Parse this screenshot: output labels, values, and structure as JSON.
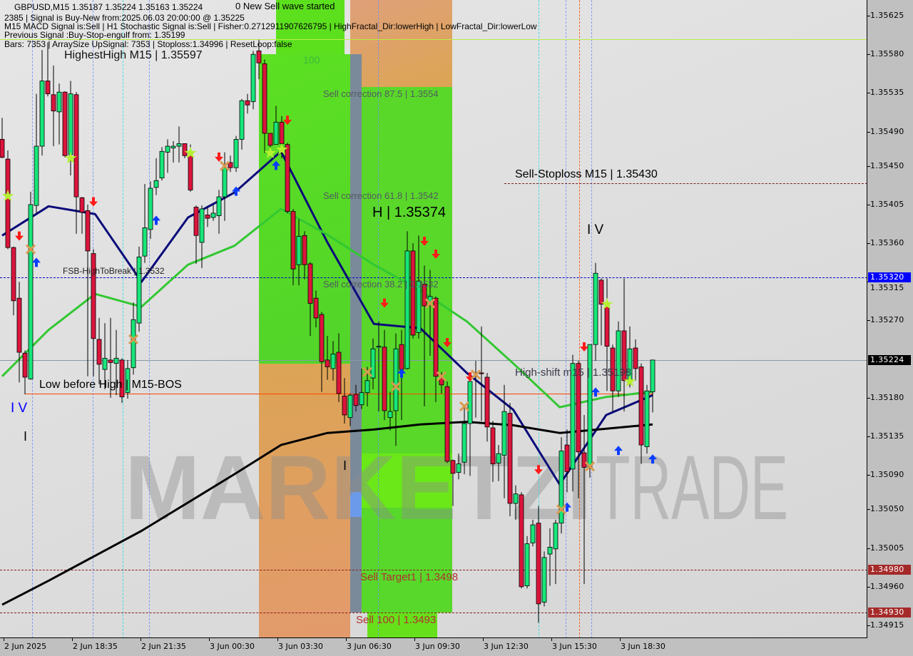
{
  "header": {
    "symbol_line": "GBPUSD,M15  1.35187 1.35224 1.35163 1.35224",
    "new_wave": "0 New Sell wave started",
    "signal_line": "2385 | Signal is Buy-New from:2025.06.03 20:00:00 @ 1.35225",
    "indicators_line": "M15 MACD Signal is:Sell | H1 Stochastic Signal is:Sell | Fisher:0.2712911907626795 | HighFractal_Dir:lowerHigh | LowFractal_Dir:lowerLow",
    "previous_signal": "Previous Signal :Buy-Stop-engulf from: 1.35199",
    "bars_line": "Bars: 7353 | ArraySize UpSignal: 7353 | Stoploss:1.34996 | ResetLoop:false",
    "highest_high": "HighestHigh  M15 | 1.35597"
  },
  "annotations": {
    "level_100": "100",
    "sell_corr_875": "Sell correction 87.5 | 1.3554",
    "sell_corr_618": "Sell correction 61.8 | 1.3542",
    "h_level": "H | 1.35374",
    "sell_corr_382": "Sell correction 38.2 | 1.3532",
    "fsb_high": "FSB-HighToBreak | 1.3532",
    "low_before_high": "Low before High  |  M15-BOS",
    "wave_iv_left": "I V",
    "wave_i_left": "I",
    "wave_i_mid": "I",
    "wave_iv_right": "I V",
    "sell_stoploss": "Sell-Stoploss M15 | 1.35430",
    "high_shift": "High-shift m15 | 1.35198",
    "sell_target1": "Sell Target1 | 1.3498",
    "sell_100": "Sell 100 | 1.3493"
  },
  "watermark": {
    "bold": "MARKETZI",
    "light": "TRADE"
  },
  "colors": {
    "bull": "#18e67a",
    "bear": "#dc143c",
    "ma_fast": "#0a0a7a",
    "ma_mid": "#32c832",
    "ma_slow": "#000000",
    "zone_green": "#5cdc22",
    "zone_orange": "#e0a262",
    "sell_arrow": "#ff1a1a",
    "buy_arrow": "#0a3cff",
    "star": "#b4f032",
    "cross": "#d89a50"
  },
  "chart_data": {
    "type": "candlestick",
    "symbol": "GBPUSD",
    "timeframe": "M15",
    "ylim": [
      1.3489,
      1.35644
    ],
    "y_ticks": [
      1.35625,
      1.3558,
      1.35535,
      1.3549,
      1.3545,
      1.35405,
      1.3536,
      1.35315,
      1.3527,
      1.3518,
      1.35135,
      1.3509,
      1.3505,
      1.35005,
      1.3496,
      1.34915
    ],
    "price_markers": [
      {
        "label": "1.35320",
        "price": 1.3532,
        "color": "#0000ff"
      },
      {
        "label": "1.35224",
        "price": 1.35224,
        "color": "#000000"
      },
      {
        "label": "1.34980",
        "price": 1.3498,
        "color": "#a52a2a"
      },
      {
        "label": "1.34930",
        "price": 1.3493,
        "color": "#a52a2a"
      }
    ],
    "x_tick_labels": [
      "2 Jun 2025",
      "2 Jun 18:35",
      "2 Jun 21:35",
      "3 Jun 00:30",
      "3 Jun 03:30",
      "3 Jun 06:30",
      "3 Jun 09:30",
      "3 Jun 12:30",
      "3 Jun 15:30",
      "3 Jun 18:30"
    ],
    "candles_ohlc": [
      [
        1.35481,
        1.35506,
        1.35459,
        1.3546
      ],
      [
        1.35458,
        1.35468,
        1.35353,
        1.35355
      ],
      [
        1.35355,
        1.35356,
        1.35276,
        1.35293
      ],
      [
        1.35296,
        1.35315,
        1.35198,
        1.35233
      ],
      [
        1.35232,
        1.35235,
        1.35184,
        1.35204
      ],
      [
        1.35202,
        1.3542,
        1.35201,
        1.35405
      ],
      [
        1.35404,
        1.35534,
        1.35395,
        1.35473
      ],
      [
        1.35473,
        1.35585,
        1.35462,
        1.35549
      ],
      [
        1.35549,
        1.35594,
        1.35531,
        1.35534
      ],
      [
        1.35533,
        1.35567,
        1.35473,
        1.35514
      ],
      [
        1.35513,
        1.35546,
        1.35475,
        1.35536
      ],
      [
        1.35536,
        1.35537,
        1.3546,
        1.35462
      ],
      [
        1.35463,
        1.35549,
        1.35439,
        1.35534
      ],
      [
        1.35533,
        1.35536,
        1.35371,
        1.35414
      ],
      [
        1.35413,
        1.35414,
        1.35371,
        1.35396
      ],
      [
        1.35398,
        1.35405,
        1.35205,
        1.35351
      ],
      [
        1.35348,
        1.35353,
        1.35205,
        1.35249
      ],
      [
        1.35248,
        1.35273,
        1.35196,
        1.35219
      ],
      [
        1.35213,
        1.35267,
        1.3519,
        1.35226
      ],
      [
        1.35224,
        1.35273,
        1.3518,
        1.35221
      ],
      [
        1.3522,
        1.35259,
        1.35183,
        1.35226
      ],
      [
        1.35224,
        1.35226,
        1.35174,
        1.35181
      ],
      [
        1.35186,
        1.35224,
        1.35179,
        1.35214
      ],
      [
        1.35215,
        1.35291,
        1.35207,
        1.35271
      ],
      [
        1.35267,
        1.35356,
        1.35257,
        1.35344
      ],
      [
        1.35345,
        1.35429,
        1.35337,
        1.35378
      ],
      [
        1.35376,
        1.35432,
        1.35365,
        1.35424
      ],
      [
        1.35425,
        1.35459,
        1.35416,
        1.35433
      ],
      [
        1.35436,
        1.35472,
        1.35433,
        1.35467
      ],
      [
        1.35466,
        1.35481,
        1.35442,
        1.35473
      ],
      [
        1.35471,
        1.35479,
        1.35454,
        1.35473
      ],
      [
        1.35473,
        1.35496,
        1.35454,
        1.35476
      ],
      [
        1.35476,
        1.35476,
        1.35459,
        1.35462
      ],
      [
        1.35462,
        1.35475,
        1.3542,
        1.35422
      ],
      [
        1.35402,
        1.35404,
        1.35336,
        1.35369
      ],
      [
        1.35361,
        1.35404,
        1.35331,
        1.354
      ],
      [
        1.35393,
        1.35402,
        1.35379,
        1.35389
      ],
      [
        1.3539,
        1.35405,
        1.35386,
        1.35395
      ],
      [
        1.35392,
        1.35422,
        1.35371,
        1.35414
      ],
      [
        1.35414,
        1.35466,
        1.35386,
        1.35448
      ],
      [
        1.35454,
        1.35462,
        1.35443,
        1.35448
      ],
      [
        1.35448,
        1.35485,
        1.35443,
        1.35481
      ],
      [
        1.35481,
        1.35528,
        1.35469,
        1.35526
      ],
      [
        1.35526,
        1.35534,
        1.35511,
        1.35521
      ],
      [
        1.35525,
        1.35584,
        1.35516,
        1.3558
      ],
      [
        1.35584,
        1.35597,
        1.35551,
        1.3557
      ],
      [
        1.35569,
        1.35574,
        1.35465,
        1.35488
      ],
      [
        1.35488,
        1.35488,
        1.35465,
        1.35474
      ],
      [
        1.35475,
        1.3552,
        1.35475,
        1.35501
      ],
      [
        1.35501,
        1.35508,
        1.35459,
        1.35476
      ],
      [
        1.35475,
        1.35477,
        1.35395,
        1.35397
      ],
      [
        1.35397,
        1.354,
        1.35311,
        1.3533
      ],
      [
        1.35335,
        1.35388,
        1.35311,
        1.35368
      ],
      [
        1.35369,
        1.35374,
        1.35318,
        1.35335
      ],
      [
        1.35336,
        1.35338,
        1.35252,
        1.3529
      ],
      [
        1.35296,
        1.35305,
        1.35262,
        1.35273
      ],
      [
        1.35277,
        1.3528,
        1.35187,
        1.35222
      ],
      [
        1.35224,
        1.35252,
        1.35201,
        1.35216
      ],
      [
        1.35214,
        1.35246,
        1.352,
        1.35231
      ],
      [
        1.35233,
        1.35255,
        1.35175,
        1.35185
      ],
      [
        1.35182,
        1.35203,
        1.3515,
        1.3516
      ],
      [
        1.35157,
        1.35185,
        1.35147,
        1.35183
      ],
      [
        1.35184,
        1.35195,
        1.35164,
        1.35171
      ],
      [
        1.35172,
        1.35214,
        1.35167,
        1.35186
      ],
      [
        1.35186,
        1.35216,
        1.3517,
        1.352
      ],
      [
        1.35203,
        1.35249,
        1.3519,
        1.35237
      ],
      [
        1.35239,
        1.35269,
        1.35164,
        1.3524
      ],
      [
        1.35239,
        1.35259,
        1.35154,
        1.35165
      ],
      [
        1.35157,
        1.35187,
        1.35142,
        1.35164
      ],
      [
        1.35165,
        1.35255,
        1.35124,
        1.35237
      ],
      [
        1.35242,
        1.35259,
        1.35154,
        1.35213
      ],
      [
        1.35214,
        1.35374,
        1.35213,
        1.35351
      ],
      [
        1.35351,
        1.3536,
        1.35249,
        1.35253
      ],
      [
        1.35256,
        1.35369,
        1.35249,
        1.35316
      ],
      [
        1.35312,
        1.35334,
        1.3517,
        1.35287
      ],
      [
        1.35292,
        1.35329,
        1.35229,
        1.35298
      ],
      [
        1.35296,
        1.35298,
        1.35175,
        1.35205
      ],
      [
        1.35203,
        1.3521,
        1.35185,
        1.35195
      ],
      [
        1.35193,
        1.35199,
        1.35104,
        1.35106
      ],
      [
        1.35107,
        1.35108,
        1.35054,
        1.35092
      ],
      [
        1.35093,
        1.35115,
        1.35085,
        1.35103
      ],
      [
        1.35105,
        1.35171,
        1.35091,
        1.3515
      ],
      [
        1.3515,
        1.35209,
        1.35089,
        1.35199
      ],
      [
        1.35208,
        1.35223,
        1.35157,
        1.35209
      ],
      [
        1.35209,
        1.35263,
        1.35153,
        1.35208
      ],
      [
        1.35204,
        1.35209,
        1.35129,
        1.35146
      ],
      [
        1.35145,
        1.35153,
        1.35082,
        1.35103
      ],
      [
        1.35104,
        1.35125,
        1.35083,
        1.35115
      ],
      [
        1.35113,
        1.35195,
        1.35063,
        1.35164
      ],
      [
        1.35162,
        1.35174,
        1.35042,
        1.35057
      ],
      [
        1.35057,
        1.35078,
        1.35038,
        1.35068
      ],
      [
        1.35067,
        1.3507,
        1.34958,
        1.3496
      ],
      [
        1.34961,
        1.35019,
        1.34958,
        1.3501
      ],
      [
        1.35011,
        1.35038,
        1.35007,
        1.35032
      ],
      [
        1.35034,
        1.35054,
        1.34918,
        1.3494
      ],
      [
        1.34942,
        1.35001,
        1.34937,
        1.34994
      ],
      [
        1.34998,
        1.35028,
        1.34961,
        1.35006
      ],
      [
        1.35004,
        1.35038,
        1.34963,
        1.35034
      ],
      [
        1.35034,
        1.35134,
        1.35022,
        1.35118
      ],
      [
        1.35125,
        1.35143,
        1.3507,
        1.35094
      ],
      [
        1.35097,
        1.3523,
        1.35071,
        1.3522
      ],
      [
        1.3522,
        1.35223,
        1.35063,
        1.35117
      ],
      [
        1.35116,
        1.3516,
        1.34963,
        1.35099
      ],
      [
        1.35099,
        1.35242,
        1.35087,
        1.35242
      ],
      [
        1.35242,
        1.35337,
        1.35223,
        1.35325
      ],
      [
        1.35317,
        1.35319,
        1.35241,
        1.35289
      ],
      [
        1.35289,
        1.35319,
        1.35188,
        1.3524
      ],
      [
        1.35238,
        1.35242,
        1.35164,
        1.35188
      ],
      [
        1.35188,
        1.35269,
        1.35181,
        1.35258
      ],
      [
        1.35258,
        1.35319,
        1.35164,
        1.352
      ],
      [
        1.352,
        1.35263,
        1.35192,
        1.35237
      ],
      [
        1.35238,
        1.35248,
        1.352,
        1.35214
      ],
      [
        1.35216,
        1.3522,
        1.35103,
        1.35125
      ],
      [
        1.35123,
        1.35195,
        1.35115,
        1.35188
      ],
      [
        1.35187,
        1.35224,
        1.35163,
        1.35224
      ]
    ],
    "moving_averages": [
      {
        "color": "#0a0a7a",
        "values": [
          1.35369,
          1.35403,
          1.35394,
          1.35315,
          1.3539,
          1.35419,
          1.35467,
          1.35361,
          1.35266,
          1.35261,
          1.35209,
          1.35166,
          1.35079,
          1.3516,
          1.35183
        ]
      },
      {
        "color": "#32c832",
        "values": [
          1.35205,
          1.35259,
          1.35301,
          1.35286,
          1.35335,
          1.35357,
          1.354,
          1.3537,
          1.35335,
          1.35305,
          1.35269,
          1.3522,
          1.35169,
          1.35181,
          1.35187
        ]
      },
      {
        "color": "#000000",
        "values": [
          1.34939,
          1.34967,
          1.34996,
          1.35025,
          1.35058,
          1.35091,
          1.35125,
          1.35139,
          1.35143,
          1.35149,
          1.35152,
          1.35148,
          1.35139,
          1.35144,
          1.35149
        ]
      }
    ],
    "signals": [
      {
        "type": "sell-arrow",
        "bar": 3,
        "price": 1.35367
      },
      {
        "type": "sell-arrow",
        "bar": 16,
        "price": 1.35407
      },
      {
        "type": "sell-arrow",
        "bar": 38,
        "price": 1.35459
      },
      {
        "type": "sell-arrow",
        "bar": 50,
        "price": 1.35502
      },
      {
        "type": "sell-arrow",
        "bar": 67,
        "price": 1.35289
      },
      {
        "type": "sell-arrow",
        "bar": 74,
        "price": 1.35361
      },
      {
        "type": "sell-arrow",
        "bar": 76,
        "price": 1.35346
      },
      {
        "type": "sell-arrow",
        "bar": 78,
        "price": 1.35243
      },
      {
        "type": "sell-arrow",
        "bar": 82,
        "price": 1.35203
      },
      {
        "type": "sell-arrow",
        "bar": 94,
        "price": 1.35095
      },
      {
        "type": "sell-arrow",
        "bar": 102,
        "price": 1.35238
      },
      {
        "type": "buy-arrow",
        "bar": 6,
        "price": 1.35339
      },
      {
        "type": "buy-arrow",
        "bar": 27,
        "price": 1.35388
      },
      {
        "type": "buy-arrow",
        "bar": 41,
        "price": 1.35422
      },
      {
        "type": "buy-arrow",
        "bar": 48,
        "price": 1.35452
      },
      {
        "type": "buy-arrow",
        "bar": 70,
        "price": 1.3521
      },
      {
        "type": "buy-arrow",
        "bar": 99,
        "price": 1.35054
      },
      {
        "type": "buy-arrow",
        "bar": 104,
        "price": 1.35188
      },
      {
        "type": "buy-arrow",
        "bar": 108,
        "price": 1.3512
      },
      {
        "type": "buy-arrow",
        "bar": 114,
        "price": 1.3511
      },
      {
        "type": "star",
        "bar": 1,
        "price": 1.35415
      },
      {
        "type": "star",
        "bar": 12,
        "price": 1.35459
      },
      {
        "type": "star",
        "bar": 33,
        "price": 1.35465
      },
      {
        "type": "star",
        "bar": 47,
        "price": 1.35465
      },
      {
        "type": "star",
        "bar": 49,
        "price": 1.35469
      },
      {
        "type": "star",
        "bar": 106,
        "price": 1.35289
      },
      {
        "type": "star",
        "bar": 110,
        "price": 1.35199
      },
      {
        "type": "cross",
        "bar": 5,
        "price": 1.35353
      },
      {
        "type": "cross",
        "bar": 23,
        "price": 1.35248
      },
      {
        "type": "cross",
        "bar": 39,
        "price": 1.3545
      },
      {
        "type": "cross",
        "bar": 64,
        "price": 1.3521
      },
      {
        "type": "cross",
        "bar": 69,
        "price": 1.35193
      },
      {
        "type": "cross",
        "bar": 75,
        "price": 1.3529
      },
      {
        "type": "cross",
        "bar": 77,
        "price": 1.35205
      },
      {
        "type": "cross",
        "bar": 81,
        "price": 1.3517
      },
      {
        "type": "cross",
        "bar": 83,
        "price": 1.35207
      },
      {
        "type": "cross",
        "bar": 98,
        "price": 1.3505
      },
      {
        "type": "cross",
        "bar": 103,
        "price": 1.351
      }
    ]
  }
}
